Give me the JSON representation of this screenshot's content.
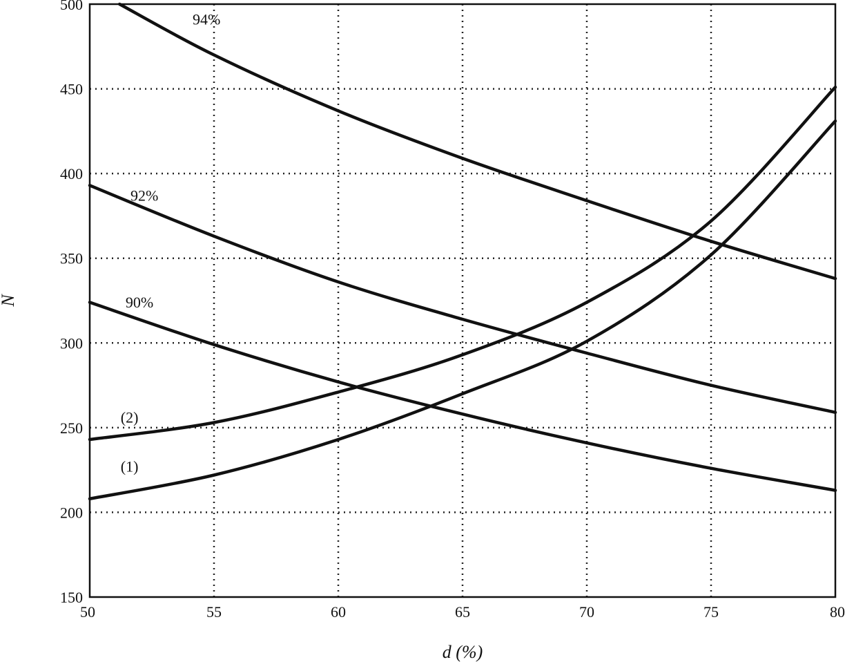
{
  "chart_data": {
    "type": "line",
    "title": "",
    "xlabel": "d (%)",
    "ylabel": "N",
    "xlim": [
      50,
      80
    ],
    "ylim": [
      150,
      500
    ],
    "xticks": [
      50,
      55,
      60,
      65,
      70,
      75,
      80
    ],
    "yticks": [
      150,
      200,
      250,
      300,
      350,
      400,
      450,
      500
    ],
    "grid": true,
    "legend": "none",
    "series": [
      {
        "name": "94%",
        "x": [
          51.2,
          55,
          60,
          65,
          70,
          75,
          80
        ],
        "y": [
          500,
          470,
          437,
          409,
          384,
          360,
          338
        ]
      },
      {
        "name": "92%",
        "x": [
          50,
          55,
          60,
          65,
          70,
          75,
          80
        ],
        "y": [
          393,
          363,
          336,
          314,
          294,
          275,
          259
        ]
      },
      {
        "name": "90%",
        "x": [
          50,
          55,
          60,
          65,
          70,
          75,
          80
        ],
        "y": [
          324,
          299,
          277,
          258,
          241,
          226,
          213
        ]
      },
      {
        "name": "(2)",
        "x": [
          50,
          55,
          60,
          65,
          70,
          75,
          80
        ],
        "y": [
          243,
          253,
          271,
          293,
          324,
          372,
          451
        ]
      },
      {
        "name": "(1)",
        "x": [
          50,
          55,
          60,
          65,
          70,
          75,
          80
        ],
        "y": [
          208,
          222,
          243,
          270,
          301,
          352,
          431
        ]
      }
    ],
    "annotations": [
      {
        "text": "94%",
        "x": 54.7,
        "y": 488
      },
      {
        "text": "92%",
        "x": 52.2,
        "y": 384
      },
      {
        "text": "90%",
        "x": 52.0,
        "y": 321
      },
      {
        "text": "(2)",
        "x": 51.6,
        "y": 253
      },
      {
        "text": "(1)",
        "x": 51.6,
        "y": 224
      }
    ]
  }
}
